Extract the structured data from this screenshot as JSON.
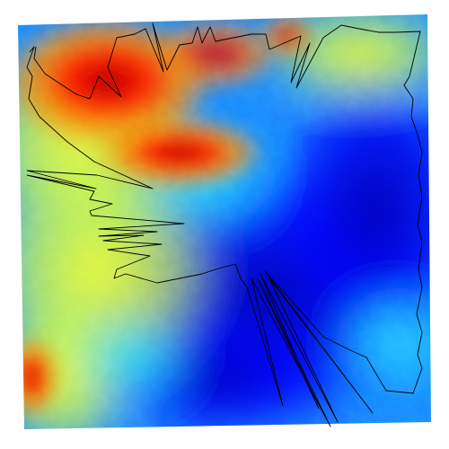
{
  "map": {
    "type": "elevation-raster",
    "colormap": [
      "#00008b",
      "#0000ff",
      "#0a7cff",
      "#1ed6ff",
      "#fbff2a",
      "#ff8a00",
      "#ff1a00",
      "#a30000"
    ],
    "outline_color": "#000000",
    "background": "#ffffff",
    "has_labels": false
  }
}
